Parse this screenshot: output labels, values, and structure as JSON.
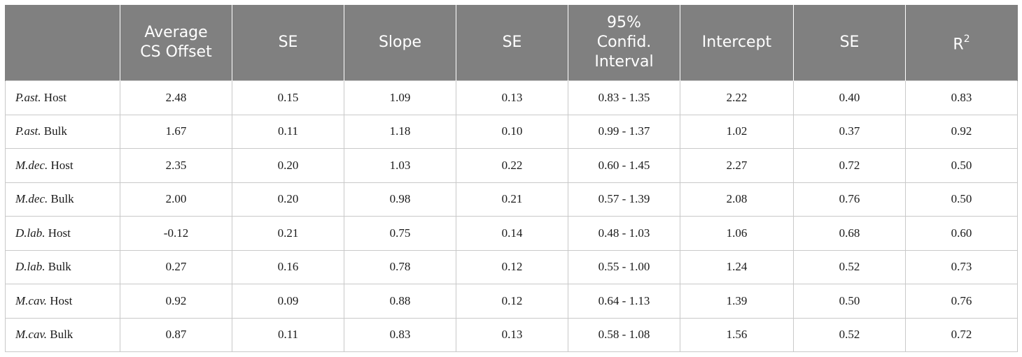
{
  "table": {
    "headers": [
      {
        "lines": [
          ""
        ]
      },
      {
        "lines": [
          "Average",
          "CS Offset"
        ]
      },
      {
        "lines": [
          "SE"
        ]
      },
      {
        "lines": [
          "Slope"
        ]
      },
      {
        "lines": [
          "SE"
        ]
      },
      {
        "lines": [
          "95%",
          "Confid.",
          "Interval"
        ]
      },
      {
        "lines": [
          "Intercept"
        ]
      },
      {
        "lines": [
          "SE"
        ]
      },
      {
        "lines": [
          "R"
        ],
        "sup": "2"
      }
    ],
    "rows": [
      {
        "species": "P.ast.",
        "type": "Host",
        "cells": [
          "2.48",
          "0.15",
          "1.09",
          "0.13",
          "0.83 - 1.35",
          "2.22",
          "0.40",
          "0.83"
        ]
      },
      {
        "species": "P.ast.",
        "type": "Bulk",
        "cells": [
          "1.67",
          "0.11",
          "1.18",
          "0.10",
          "0.99 - 1.37",
          "1.02",
          "0.37",
          "0.92"
        ]
      },
      {
        "species": "M.dec.",
        "type": "Host",
        "cells": [
          "2.35",
          "0.20",
          "1.03",
          "0.22",
          "0.60 - 1.45",
          "2.27",
          "0.72",
          "0.50"
        ]
      },
      {
        "species": "M.dec.",
        "type": "Bulk",
        "cells": [
          "2.00",
          "0.20",
          "0.98",
          "0.21",
          "0.57 - 1.39",
          "2.08",
          "0.76",
          "0.50"
        ]
      },
      {
        "species": "D.lab.",
        "type": "Host",
        "cells": [
          "-0.12",
          "0.21",
          "0.75",
          "0.14",
          "0.48 - 1.03",
          "1.06",
          "0.68",
          "0.60"
        ]
      },
      {
        "species": "D.lab.",
        "type": "Bulk",
        "cells": [
          "0.27",
          "0.16",
          "0.78",
          "0.12",
          "0.55 - 1.00",
          "1.24",
          "0.52",
          "0.73"
        ]
      },
      {
        "species": "M.cav.",
        "type": "Host",
        "cells": [
          "0.92",
          "0.09",
          "0.88",
          "0.12",
          "0.64 - 1.13",
          "1.39",
          "0.50",
          "0.76"
        ]
      },
      {
        "species": "M.cav.",
        "type": "Bulk",
        "cells": [
          "0.87",
          "0.11",
          "0.83",
          "0.13",
          "0.58 - 1.08",
          "1.56",
          "0.52",
          "0.72"
        ]
      }
    ]
  },
  "colors": {
    "header_bg": "#808080",
    "header_text": "#ffffff",
    "grid_line": "#c9c9c9",
    "body_text": "#1a1a1a"
  }
}
